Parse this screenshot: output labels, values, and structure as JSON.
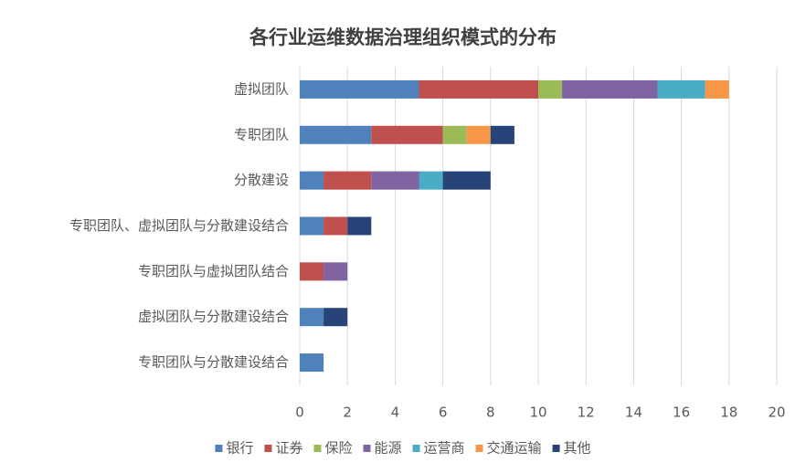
{
  "chart_data": {
    "type": "stacked-barh",
    "title": "各行业运维数据治理组织模式的分布",
    "categories": [
      "虚拟团队",
      "专职团队",
      "分散建设",
      "专职团队、虚拟团队与分散建设结合",
      "专职团队与虚拟团队结合",
      "虚拟团队与分散建设结合",
      "专职团队与分散建设结合"
    ],
    "series": [
      {
        "name": "银行",
        "color": "#4f81bd",
        "values": [
          5,
          3,
          1,
          1,
          0,
          1,
          1
        ]
      },
      {
        "name": "证券",
        "color": "#c0504d",
        "values": [
          5,
          3,
          2,
          1,
          1,
          0,
          0
        ]
      },
      {
        "name": "保险",
        "color": "#9bbb59",
        "values": [
          1,
          1,
          0,
          0,
          0,
          0,
          0
        ]
      },
      {
        "name": "能源",
        "color": "#8064a2",
        "values": [
          4,
          0,
          2,
          0,
          1,
          0,
          0
        ]
      },
      {
        "name": "运营商",
        "color": "#4bacc6",
        "values": [
          2,
          0,
          1,
          0,
          0,
          0,
          0
        ]
      },
      {
        "name": "交通运输",
        "color": "#f79646",
        "values": [
          1,
          1,
          0,
          0,
          0,
          0,
          0
        ]
      },
      {
        "name": "其他",
        "color": "#264478",
        "values": [
          0,
          1,
          2,
          1,
          0,
          1,
          0
        ]
      }
    ],
    "xlim": [
      0,
      20
    ],
    "xticks": [
      0,
      2,
      4,
      6,
      8,
      10,
      12,
      14,
      16,
      18,
      20
    ],
    "grid": true,
    "legend": "bottom"
  }
}
